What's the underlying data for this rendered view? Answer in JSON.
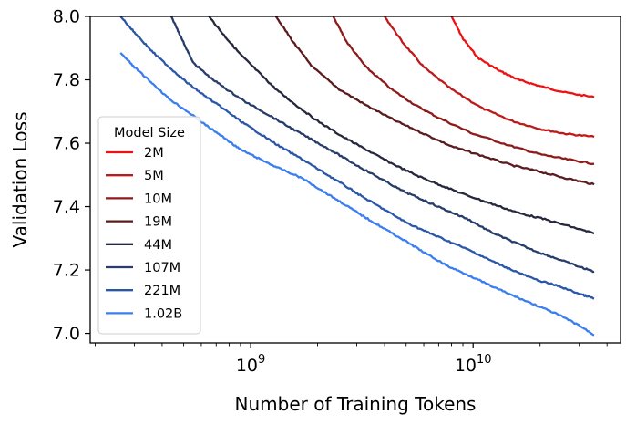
{
  "chart_data": {
    "type": "line",
    "title": "",
    "xlabel": "Number of Training Tokens",
    "ylabel": "Validation Loss",
    "xscale": "log",
    "xlim": [
      190000000.0,
      46000000000.0
    ],
    "ylim": [
      6.97,
      8.0
    ],
    "grid": false,
    "x_ticks": [
      {
        "value": 1000000000.0,
        "base": "10",
        "exp": "9"
      },
      {
        "value": 10000000000.0,
        "base": "10",
        "exp": "10"
      }
    ],
    "y_ticks": [
      "7.0",
      "7.2",
      "7.4",
      "7.6",
      "7.8",
      "8.0"
    ],
    "legend": {
      "title": "Model Size",
      "placement": "upper-left"
    },
    "series": [
      {
        "name": "2M",
        "color": "#ee1111",
        "points": [
          [
            8000000000.0,
            8.0
          ],
          [
            9000000000.0,
            7.93
          ],
          [
            10500000000.0,
            7.87
          ],
          [
            13000000000.0,
            7.83
          ],
          [
            16000000000.0,
            7.8
          ],
          [
            20000000000.0,
            7.78
          ],
          [
            26000000000.0,
            7.76
          ],
          [
            35000000000.0,
            7.745
          ]
        ]
      },
      {
        "name": "5M",
        "color": "#bf1a1a",
        "points": [
          [
            4000000000.0,
            8.0
          ],
          [
            4800000000.0,
            7.92
          ],
          [
            6000000000.0,
            7.84
          ],
          [
            8000000000.0,
            7.77
          ],
          [
            11000000000.0,
            7.71
          ],
          [
            15000000000.0,
            7.67
          ],
          [
            20000000000.0,
            7.645
          ],
          [
            26000000000.0,
            7.63
          ],
          [
            35000000000.0,
            7.62
          ]
        ]
      },
      {
        "name": "10M",
        "color": "#8f1a1a",
        "points": [
          [
            2350000000.0,
            8.0
          ],
          [
            2700000000.0,
            7.92
          ],
          [
            3300000000.0,
            7.84
          ],
          [
            4300000000.0,
            7.77
          ],
          [
            5500000000.0,
            7.72
          ],
          [
            7000000000.0,
            7.68
          ],
          [
            10000000000.0,
            7.63
          ],
          [
            15000000000.0,
            7.59
          ],
          [
            20000000000.0,
            7.565
          ],
          [
            26000000000.0,
            7.55
          ],
          [
            35000000000.0,
            7.535
          ]
        ]
      },
      {
        "name": "19M",
        "color": "#5a1c1f",
        "points": [
          [
            1300000000.0,
            8.0
          ],
          [
            1550000000.0,
            7.92
          ],
          [
            1900000000.0,
            7.84
          ],
          [
            2500000000.0,
            7.77
          ],
          [
            3300000000.0,
            7.72
          ],
          [
            4500000000.0,
            7.67
          ],
          [
            6000000000.0,
            7.63
          ],
          [
            8000000000.0,
            7.59
          ],
          [
            11000000000.0,
            7.56
          ],
          [
            15000000000.0,
            7.53
          ],
          [
            20000000000.0,
            7.51
          ],
          [
            26000000000.0,
            7.49
          ],
          [
            35000000000.0,
            7.47
          ]
        ]
      },
      {
        "name": "44M",
        "color": "#26283e",
        "points": [
          [
            650000000.0,
            8.0
          ],
          [
            760000000.0,
            7.94
          ],
          [
            900000000.0,
            7.88
          ],
          [
            1100000000.0,
            7.82
          ],
          [
            1300000000.0,
            7.77
          ],
          [
            1600000000.0,
            7.72
          ],
          [
            2000000000.0,
            7.67
          ],
          [
            2600000000.0,
            7.62
          ],
          [
            3300000000.0,
            7.58
          ],
          [
            4200000000.0,
            7.54
          ],
          [
            5500000000.0,
            7.5
          ],
          [
            7000000000.0,
            7.47
          ],
          [
            9000000000.0,
            7.44
          ],
          [
            12000000000.0,
            7.41
          ],
          [
            16000000000.0,
            7.38
          ],
          [
            21000000000.0,
            7.36
          ],
          [
            28000000000.0,
            7.335
          ],
          [
            35000000000.0,
            7.315
          ]
        ]
      },
      {
        "name": "107M",
        "color": "#283d6a",
        "points": [
          [
            440000000.0,
            8.0
          ],
          [
            490000000.0,
            7.93
          ],
          [
            550000000.0,
            7.855
          ],
          [
            650000000.0,
            7.81
          ],
          [
            780000000.0,
            7.77
          ],
          [
            950000000.0,
            7.73
          ],
          [
            1200000000.0,
            7.69
          ],
          [
            1500000000.0,
            7.65
          ],
          [
            1900000000.0,
            7.61
          ],
          [
            2400000000.0,
            7.57
          ],
          [
            3000000000.0,
            7.53
          ],
          [
            3800000000.0,
            7.49
          ],
          [
            4800000000.0,
            7.45
          ],
          [
            6000000000.0,
            7.42
          ],
          [
            7500000000.0,
            7.39
          ],
          [
            9500000000.0,
            7.36
          ],
          [
            12000000000.0,
            7.32
          ],
          [
            15000000000.0,
            7.29
          ],
          [
            19000000000.0,
            7.26
          ],
          [
            24000000000.0,
            7.235
          ],
          [
            30000000000.0,
            7.21
          ],
          [
            35000000000.0,
            7.195
          ]
        ]
      },
      {
        "name": "221M",
        "color": "#2b57a8",
        "points": [
          [
            260000000.0,
            8.0
          ],
          [
            300000000.0,
            7.95
          ],
          [
            360000000.0,
            7.89
          ],
          [
            430000000.0,
            7.84
          ],
          [
            520000000.0,
            7.79
          ],
          [
            620000000.0,
            7.75
          ],
          [
            750000000.0,
            7.71
          ],
          [
            900000000.0,
            7.67
          ],
          [
            1100000000.0,
            7.63
          ],
          [
            1350000000.0,
            7.59
          ],
          [
            1700000000.0,
            7.55
          ],
          [
            2100000000.0,
            7.51
          ],
          [
            2600000000.0,
            7.47
          ],
          [
            3200000000.0,
            7.43
          ],
          [
            4000000000.0,
            7.39
          ],
          [
            5000000000.0,
            7.35
          ],
          [
            6200000000.0,
            7.32
          ],
          [
            7800000000.0,
            7.29
          ],
          [
            9800000000.0,
            7.26
          ],
          [
            12000000000.0,
            7.23
          ],
          [
            15000000000.0,
            7.2
          ],
          [
            19000000000.0,
            7.17
          ],
          [
            24000000000.0,
            7.15
          ],
          [
            30000000000.0,
            7.125
          ],
          [
            35000000000.0,
            7.11
          ]
        ]
      },
      {
        "name": "1.02B",
        "color": "#3b7ef0",
        "points": [
          [
            260000000.0,
            7.885
          ],
          [
            300000000.0,
            7.84
          ],
          [
            360000000.0,
            7.79
          ],
          [
            430000000.0,
            7.74
          ],
          [
            520000000.0,
            7.7
          ],
          [
            620000000.0,
            7.66
          ],
          [
            750000000.0,
            7.62
          ],
          [
            900000000.0,
            7.58
          ],
          [
            1100000000.0,
            7.55
          ],
          [
            1350000000.0,
            7.52
          ],
          [
            1700000000.0,
            7.49
          ],
          [
            2100000000.0,
            7.45
          ],
          [
            2600000000.0,
            7.41
          ],
          [
            3200000000.0,
            7.37
          ],
          [
            4000000000.0,
            7.33
          ],
          [
            5000000000.0,
            7.29
          ],
          [
            6200000000.0,
            7.25
          ],
          [
            7800000000.0,
            7.21
          ],
          [
            9800000000.0,
            7.18
          ],
          [
            12000000000.0,
            7.15
          ],
          [
            15000000000.0,
            7.12
          ],
          [
            19000000000.0,
            7.09
          ],
          [
            24000000000.0,
            7.06
          ],
          [
            30000000000.0,
            7.025
          ],
          [
            35000000000.0,
            6.995
          ]
        ]
      }
    ]
  }
}
